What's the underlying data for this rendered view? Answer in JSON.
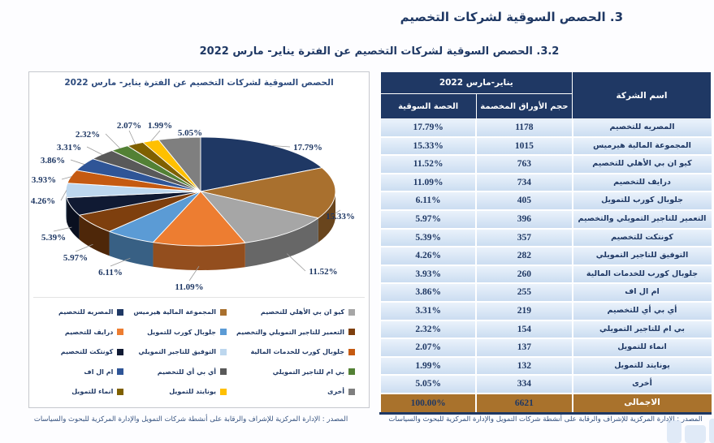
{
  "page": {
    "main_title": "3. الحصص السوقية لشركات التخصيم",
    "subtitle": "3.2. الحصص السوقية لشركات التخصيم عن الفترة يناير- مارس 2022",
    "source_note": "المصدر : الإدارة المركزية للإشراف والرقابة على أنشطة شركات التمويل والإدارة المركزية للبحوث والسياسات"
  },
  "chart_data": {
    "type": "pie",
    "effect_3d": true,
    "title": "الحصص السوقية لشركات التخصيم عن الفترة يناير- مارس 2022",
    "unit": "%",
    "legend_position": "bottom",
    "categories": [
      "المصريه للتخصيم",
      "المجموعة المالية هيرميس",
      "كيو ان بي الأهلي للتخصيم",
      "درايف للتخصيم",
      "جلوبال كورب للتمويل",
      "التعمير للتاجير التمويلي والتخصيم",
      "كونتكت للتخصيم",
      "التوفيق للتاجير التمويلي",
      "جلوبال كورب للخدمات المالية",
      "ام ال اف",
      "أي بي أي للتخصيم",
      "بي ام للتاجير التمويلي",
      "انماء للتمويل",
      "يونايتد للتمويل",
      "أخرى"
    ],
    "values": [
      17.79,
      15.33,
      11.52,
      11.09,
      6.11,
      5.97,
      5.39,
      4.26,
      3.93,
      3.86,
      3.31,
      2.32,
      2.07,
      1.99,
      5.05
    ],
    "colors": [
      "#1F3864",
      "#A9702E",
      "#A6A6A6",
      "#ED7D31",
      "#5B9BD5",
      "#7E3F0E",
      "#101A33",
      "#BDD7EE",
      "#C55A11",
      "#2F5597",
      "#595959",
      "#538135",
      "#7F6000",
      "#FFC000",
      "#7F7F7F"
    ]
  },
  "table": {
    "header": {
      "company": "اسم الشركة",
      "period": "يناير-مارس 2022",
      "volume": "حجم الأوراق المخصمة",
      "share": "الحصة السوقية"
    },
    "rows": [
      {
        "name": "المصريه للتخصيم",
        "volume": 1178,
        "share": "17.79%"
      },
      {
        "name": "المجموعة المالية هيرميس",
        "volume": 1015,
        "share": "15.33%"
      },
      {
        "name": "كيو ان بي الأهلي للتخصيم",
        "volume": 763,
        "share": "11.52%"
      },
      {
        "name": "درايف للتخصيم",
        "volume": 734,
        "share": "11.09%"
      },
      {
        "name": "جلوبال كورب للتمويل",
        "volume": 405,
        "share": "6.11%"
      },
      {
        "name": "التعمير للتاجير التمويلي والتخصيم",
        "volume": 396,
        "share": "5.97%"
      },
      {
        "name": "كونتكت للتخصيم",
        "volume": 357,
        "share": "5.39%"
      },
      {
        "name": "التوفيق للتاجير التمويلي",
        "volume": 282,
        "share": "4.26%"
      },
      {
        "name": "جلوبال كورب للخدمات المالية",
        "volume": 260,
        "share": "3.93%"
      },
      {
        "name": "ام ال اف",
        "volume": 255,
        "share": "3.86%"
      },
      {
        "name": "أي بي أي للتخصيم",
        "volume": 219,
        "share": "3.31%"
      },
      {
        "name": "بي ام للتاجير التمويلي",
        "volume": 154,
        "share": "2.32%"
      },
      {
        "name": "انماء للتمويل",
        "volume": 137,
        "share": "2.07%"
      },
      {
        "name": "يونايتد للتمويل",
        "volume": 132,
        "share": "1.99%"
      },
      {
        "name": "أخرى",
        "volume": 334,
        "share": "5.05%"
      }
    ],
    "total": {
      "name": "الاجمالى",
      "volume": 6621,
      "share": "100.00%"
    }
  },
  "colors": {
    "accent_navy": "#1F3864",
    "row_blue": "#D9E7F6",
    "total_brown": "#A9722C"
  }
}
